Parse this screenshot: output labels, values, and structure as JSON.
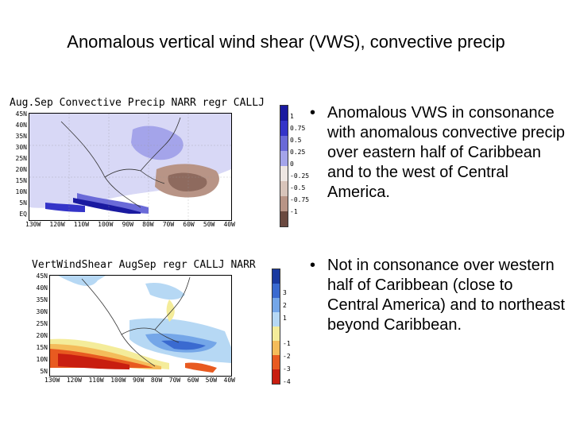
{
  "slide": {
    "title": "Anomalous vertical wind shear (VWS), convective precip"
  },
  "map_precip": {
    "title": "Aug.Sep  Convective  Precip  NARR  regr  CALLJ",
    "lat_labels": [
      "45N",
      "40N",
      "35N",
      "30N",
      "25N",
      "20N",
      "15N",
      "10N",
      "5N",
      "EQ"
    ],
    "lon_labels": [
      "130W",
      "120W",
      "110W",
      "100W",
      "90W",
      "80W",
      "70W",
      "60W",
      "50W",
      "40W"
    ],
    "colorbar_labels": [
      "1",
      "0.75",
      "0.5",
      "0.25",
      "0",
      "-0.25",
      "-0.5",
      "-0.75",
      "-1"
    ],
    "colors": {
      "positive": [
        "#1a1aa0",
        "#3434c8",
        "#6a6ad8",
        "#a4a4ea",
        "#d8d8f6"
      ],
      "negative": [
        "#eee6e2",
        "#d8c4ba",
        "#b89486",
        "#8e6a5e",
        "#6b4a40"
      ]
    }
  },
  "map_vws": {
    "title": "VertWindShear  AugSep  regr  CALLJ  NARR",
    "lat_labels": [
      "45N",
      "40N",
      "35N",
      "30N",
      "25N",
      "20N",
      "15N",
      "10N",
      "5N"
    ],
    "lon_labels": [
      "130W",
      "120W",
      "110W",
      "100W",
      "90W",
      "80W",
      "70W",
      "60W",
      "50W",
      "40W"
    ],
    "colorbar_labels": [
      "3",
      "2",
      "1",
      "",
      "-1",
      "-2",
      "-3",
      "-4"
    ],
    "colors": {
      "negative": [
        "#1a3aa0",
        "#3a6ad0",
        "#74a6e8",
        "#b6d8f4"
      ],
      "positive": [
        "#f4ec9a",
        "#f4bc5a",
        "#e85a20",
        "#c81e10"
      ]
    }
  },
  "bullets": [
    {
      "text": "Anomalous VWS in consonance with anomalous convective precip over eastern half of Caribbean and to the west of Central America."
    },
    {
      "text": "Not in consonance over western half of Caribbean (close to Central America) and to northeast beyond Caribbean."
    }
  ]
}
